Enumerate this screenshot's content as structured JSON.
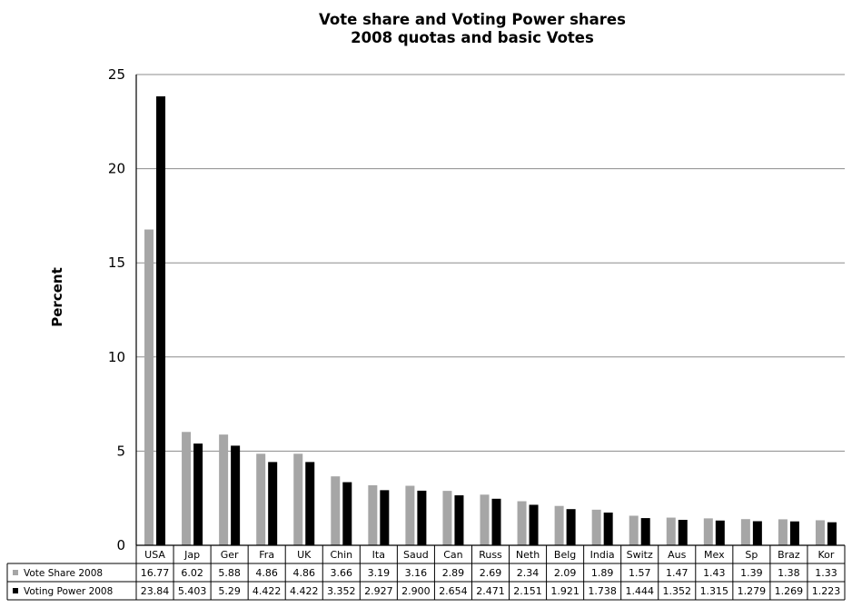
{
  "chart_data": {
    "type": "bar",
    "title": "Vote share and Voting Power shares\n2008 quotas and basic Votes",
    "xlabel": "",
    "ylabel": "Percent",
    "ylim": [
      0,
      25
    ],
    "yticks": [
      0,
      5,
      10,
      15,
      20,
      25
    ],
    "grid": true,
    "legend": "data-table-left",
    "categories": [
      "USA",
      "Jap",
      "Ger",
      "Fra",
      "UK",
      "Chin",
      "Ita",
      "Saud",
      "Can",
      "Russ",
      "Neth",
      "Belg",
      "India",
      "Switz",
      "Aus",
      "Mex",
      "Sp",
      "Braz",
      "Kor"
    ],
    "series": [
      {
        "name": "Vote Share 2008",
        "color": "#a6a6a6",
        "values": [
          16.77,
          6.02,
          5.88,
          4.86,
          4.86,
          3.66,
          3.19,
          3.16,
          2.89,
          2.69,
          2.34,
          2.09,
          1.89,
          1.57,
          1.47,
          1.43,
          1.39,
          1.38,
          1.33
        ],
        "labels": [
          "16.77",
          "6.02",
          "5.88",
          "4.86",
          "4.86",
          "3.66",
          "3.19",
          "3.16",
          "2.89",
          "2.69",
          "2.34",
          "2.09",
          "1.89",
          "1.57",
          "1.47",
          "1.43",
          "1.39",
          "1.38",
          "1.33"
        ]
      },
      {
        "name": "Voting Power 2008",
        "color": "#000000",
        "values": [
          23.84,
          5.403,
          5.29,
          4.422,
          4.422,
          3.352,
          2.927,
          2.9,
          2.654,
          2.471,
          2.151,
          1.921,
          1.738,
          1.444,
          1.352,
          1.315,
          1.279,
          1.269,
          1.223
        ],
        "labels": [
          "23.84",
          "5.403",
          "5.29",
          "4.422",
          "4.422",
          "3.352",
          "2.927",
          "2.900",
          "2.654",
          "2.471",
          "2.151",
          "1.921",
          "1.738",
          "1.444",
          "1.352",
          "1.315",
          "1.279",
          "1.269",
          "1.223"
        ]
      }
    ]
  }
}
